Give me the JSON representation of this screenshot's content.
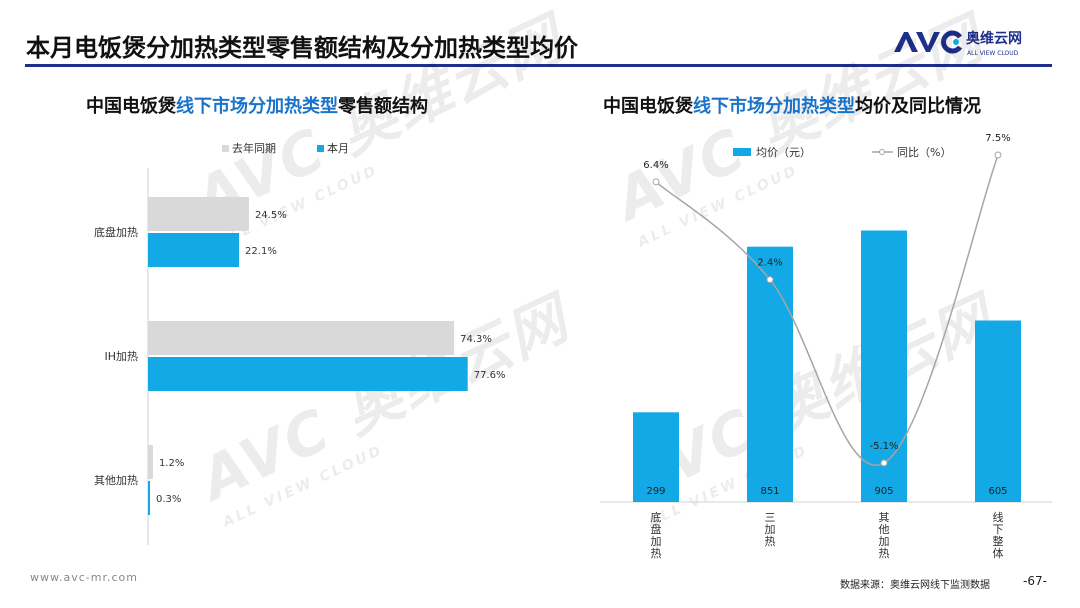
{
  "page": {
    "title": "本月电饭煲分加热类型零售额结构及分加热类型均价",
    "logo_text": "奥维云网",
    "logo_sub": "ALL VIEW CLOUD",
    "footer_url": "www.avc-mr.com",
    "footer_source": "数据来源：奥维云网线下监测数据",
    "page_number": "-67-",
    "watermark_main": "AVC 奥维云网",
    "watermark_sub": "ALL VIEW CLOUD"
  },
  "chart_data": [
    {
      "type": "bar",
      "orientation": "horizontal",
      "title_pre": "中国电饭煲",
      "title_hl": "线下市场分加热类型",
      "title_post": "零售额结构",
      "categories": [
        "底盘加热",
        "IH加热",
        "其他加热"
      ],
      "series": [
        {
          "name": "去年同期",
          "values": [
            24.5,
            74.3,
            1.2
          ],
          "labels": [
            "24.5%",
            "74.3%",
            "1.2%"
          ],
          "color": "#d9d9d9"
        },
        {
          "name": "本月",
          "values": [
            22.1,
            77.6,
            0.3
          ],
          "labels": [
            "22.1%",
            "77.6%",
            "0.3%"
          ],
          "color": "#12a9e6"
        }
      ],
      "xlim": [
        0,
        100
      ],
      "legend_position": "top",
      "grid": false
    },
    {
      "type": "bar",
      "title_pre": "中国电饭煲",
      "title_hl": "线下市场分加热类型",
      "title_post": "均价及同比情况",
      "categories": [
        "底盘加热",
        "三加热",
        "其他加热",
        "线下整体"
      ],
      "series": [
        {
          "name": "均价（元）",
          "kind": "bar",
          "values": [
            299,
            851,
            905,
            605
          ],
          "labels": [
            "299",
            "851",
            "905",
            "605"
          ],
          "color": "#12a9e6"
        },
        {
          "name": "同比（%）",
          "kind": "line",
          "values": [
            6.4,
            2.4,
            -5.1,
            7.5
          ],
          "labels": [
            "6.4%",
            "2.4%",
            "-5.1%",
            "7.5%"
          ],
          "color": "#a6a6a6"
        }
      ],
      "ylim_bar": [
        0,
        1000
      ],
      "ylim_line": [
        -6,
        12
      ],
      "legend_position": "top",
      "grid": false
    }
  ]
}
